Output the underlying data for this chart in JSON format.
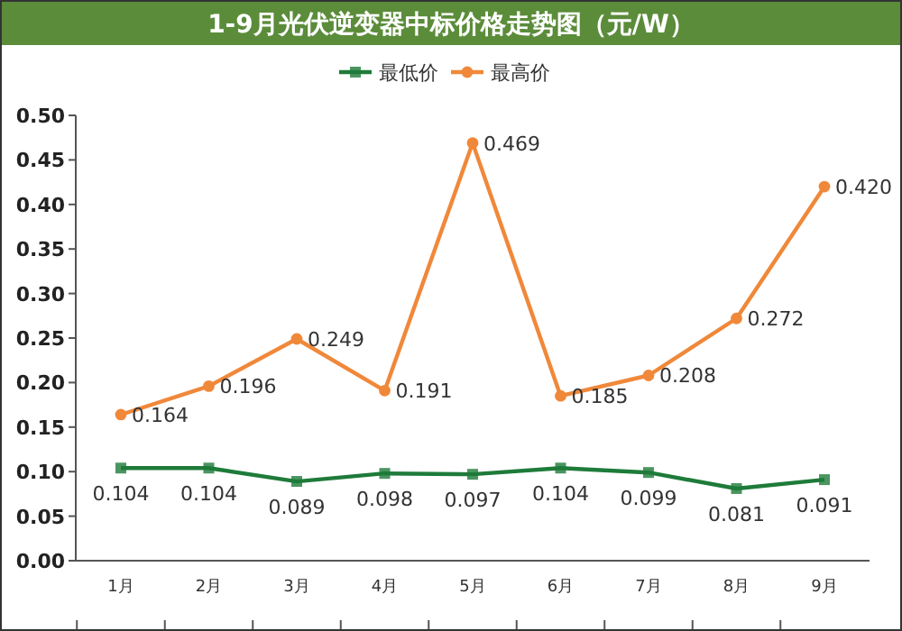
{
  "chart_data": {
    "type": "line",
    "title": "1-9月光伏逆变器中标价格走势图（元/W）",
    "categories": [
      "1月",
      "2月",
      "3月",
      "4月",
      "5月",
      "6月",
      "7月",
      "8月",
      "9月"
    ],
    "series": [
      {
        "name": "最低价",
        "color": "#1e7b3a",
        "marker": "square",
        "values": [
          0.104,
          0.104,
          0.089,
          0.098,
          0.097,
          0.104,
          0.099,
          0.081,
          0.091
        ]
      },
      {
        "name": "最高价",
        "color": "#f0883a",
        "marker": "circle",
        "values": [
          0.164,
          0.196,
          0.249,
          0.191,
          0.469,
          0.185,
          0.208,
          0.272,
          0.42
        ],
        "value_labels": [
          "0.164",
          "0.196",
          "0.249",
          "0.191",
          "0.469",
          "0.185",
          "0.208",
          "0.272",
          "0.420"
        ]
      }
    ],
    "ylim": [
      0,
      0.5
    ],
    "yticks": [
      "0.00",
      "0.05",
      "0.10",
      "0.15",
      "0.20",
      "0.25",
      "0.30",
      "0.35",
      "0.40",
      "0.45",
      "0.50"
    ],
    "data_labels": true,
    "legend": "top",
    "grid": false
  }
}
